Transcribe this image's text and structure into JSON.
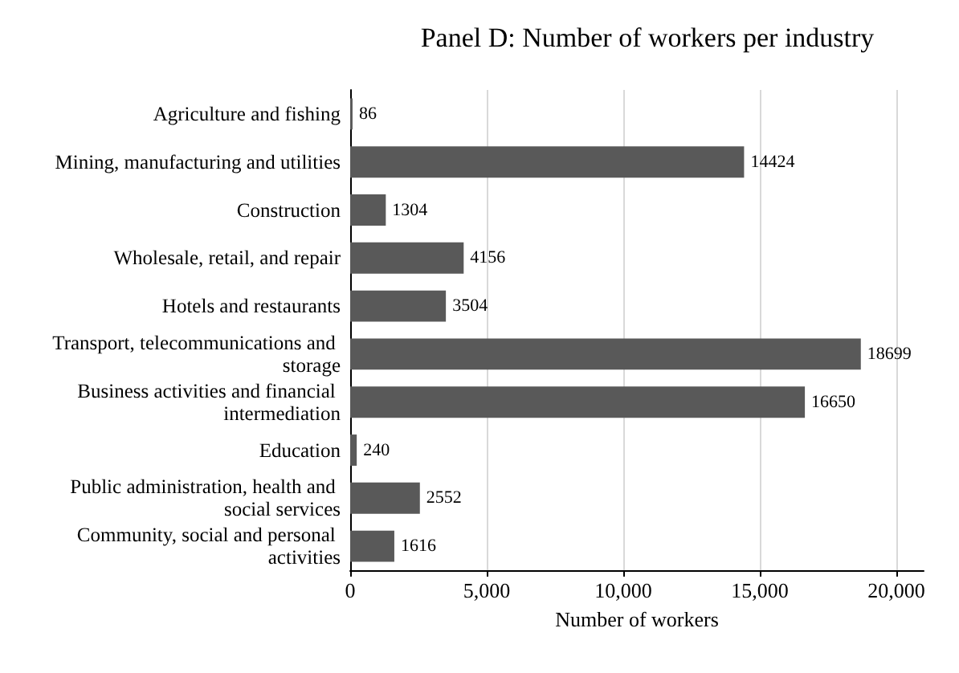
{
  "chart_data": {
    "type": "bar",
    "orientation": "horizontal",
    "title": "Panel D: Number of workers per industry",
    "xlabel": "Number of workers",
    "categories": [
      "Agriculture and fishing",
      "Mining, manufacturing and utilities",
      "Construction",
      "Wholesale, retail, and repair",
      "Hotels and restaurants",
      "Transport, telecommunications and storage",
      "Business activities and financial intermediation",
      "Education",
      "Public administration, health and social services",
      "Community, social and personal activities"
    ],
    "values": [
      86,
      14424,
      1304,
      4156,
      3504,
      18699,
      16650,
      240,
      2552,
      1616
    ],
    "color": "#595959",
    "data_labels": true,
    "grid": "x",
    "xlim": [
      0,
      21000
    ],
    "xticks": [
      0,
      {
        "value": 5000,
        "label": "5,000"
      },
      {
        "value": 10000,
        "label": "10,000"
      },
      {
        "value": 15000,
        "label": "15,000"
      },
      {
        "value": 20000,
        "label": "20,000"
      }
    ]
  }
}
